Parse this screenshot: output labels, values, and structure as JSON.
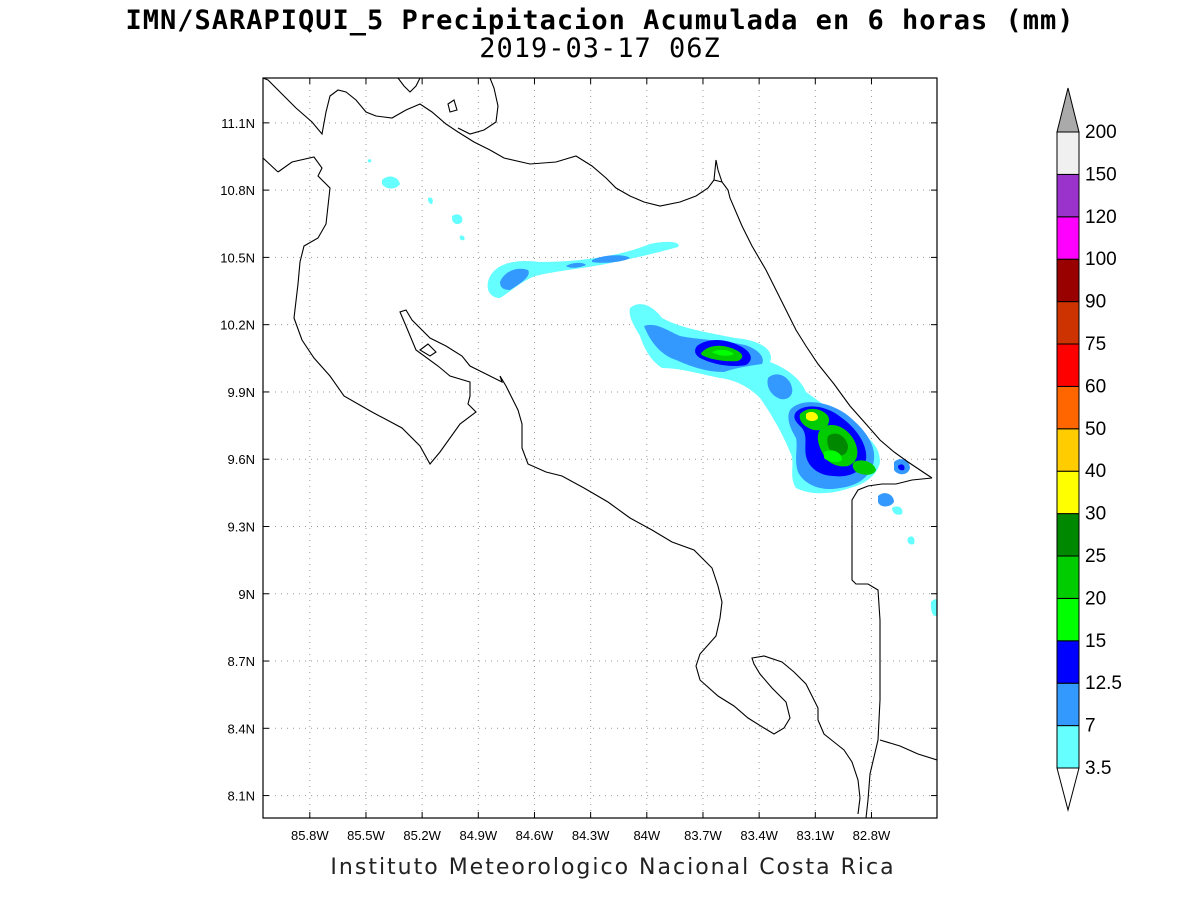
{
  "title": "IMN/SARAPIQUI_5 Precipitacion Acumulada en 6 horas (mm)",
  "subtitle": "2019-03-17 06Z",
  "footer": "Instituto Meteorologico Nacional Costa Rica",
  "map": {
    "lon_range": [
      -86.05,
      -82.45
    ],
    "lat_range": [
      8.0,
      11.3
    ],
    "x_ticks": [
      {
        "value": -85.8,
        "label": "85.8W"
      },
      {
        "value": -85.5,
        "label": "85.5W"
      },
      {
        "value": -85.2,
        "label": "85.2W"
      },
      {
        "value": -84.9,
        "label": "84.9W"
      },
      {
        "value": -84.6,
        "label": "84.6W"
      },
      {
        "value": -84.3,
        "label": "84.3W"
      },
      {
        "value": -84.0,
        "label": "84W"
      },
      {
        "value": -83.7,
        "label": "83.7W"
      },
      {
        "value": -83.4,
        "label": "83.4W"
      },
      {
        "value": -83.1,
        "label": "83.1W"
      },
      {
        "value": -82.8,
        "label": "82.8W"
      }
    ],
    "y_ticks": [
      {
        "value": 11.1,
        "label": "11.1N"
      },
      {
        "value": 10.8,
        "label": "10.8N"
      },
      {
        "value": 10.5,
        "label": "10.5N"
      },
      {
        "value": 10.2,
        "label": "10.2N"
      },
      {
        "value": 9.9,
        "label": "9.9N"
      },
      {
        "value": 9.6,
        "label": "9.6N"
      },
      {
        "value": 9.3,
        "label": "9.3N"
      },
      {
        "value": 9.0,
        "label": "9N"
      },
      {
        "value": 8.7,
        "label": "8.7N"
      },
      {
        "value": 8.4,
        "label": "8.4N"
      },
      {
        "value": 8.1,
        "label": "8.1N"
      }
    ],
    "grid": true
  },
  "colorbar": {
    "levels": [
      {
        "label": "3.5",
        "color": "#66ffff"
      },
      {
        "label": "7",
        "color": "#3399ff"
      },
      {
        "label": "12.5",
        "color": "#0000ff"
      },
      {
        "label": "15",
        "color": "#00ff00"
      },
      {
        "label": "20",
        "color": "#00cc00"
      },
      {
        "label": "25",
        "color": "#008800"
      },
      {
        "label": "30",
        "color": "#ffff00"
      },
      {
        "label": "40",
        "color": "#ffcc00"
      },
      {
        "label": "50",
        "color": "#ff6600"
      },
      {
        "label": "60",
        "color": "#ff0000"
      },
      {
        "label": "75",
        "color": "#cc3300"
      },
      {
        "label": "90",
        "color": "#990000"
      },
      {
        "label": "100",
        "color": "#ff00ff"
      },
      {
        "label": "120",
        "color": "#9933cc"
      },
      {
        "label": "150",
        "color": "#f0f0f0"
      },
      {
        "label": "200",
        "color": "#aaaaaa"
      }
    ]
  }
}
